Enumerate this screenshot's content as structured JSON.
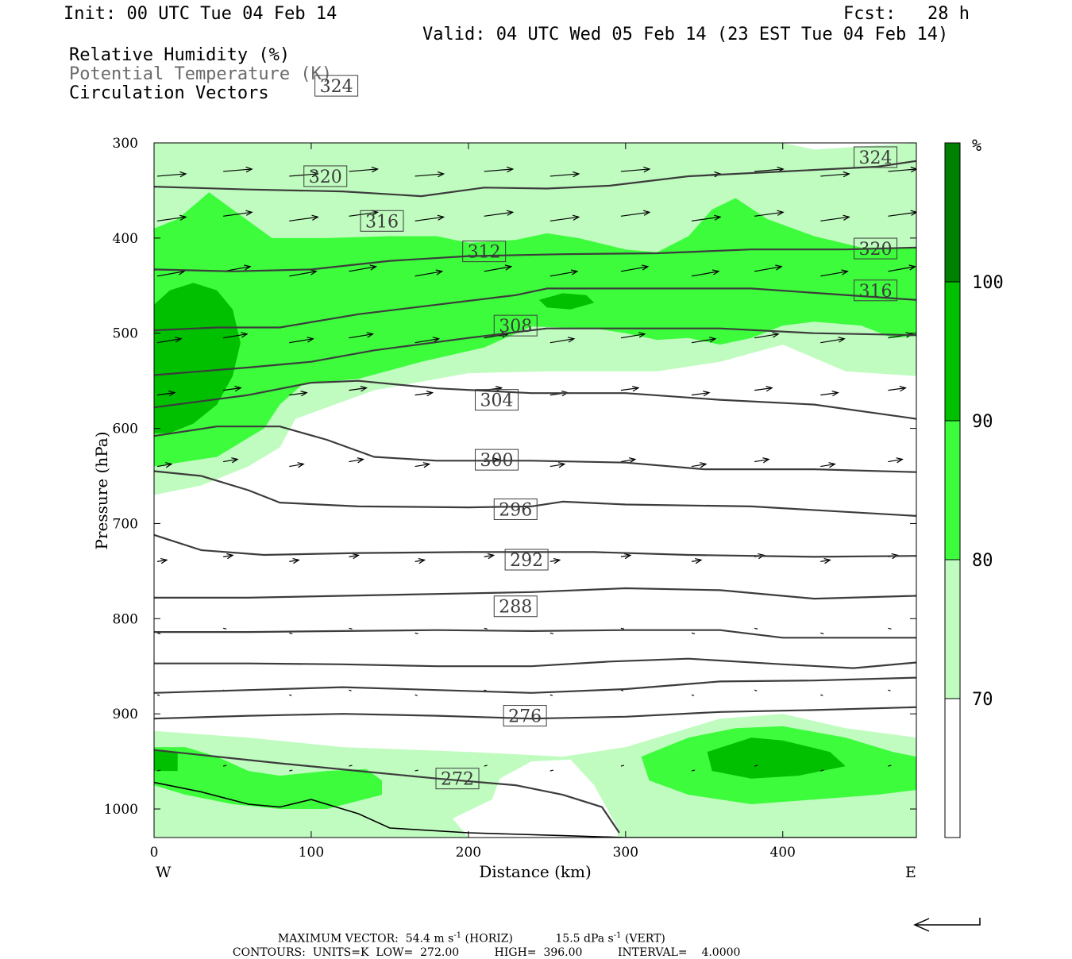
{
  "header": {
    "init": "Init: 00 UTC Tue 04 Feb 14",
    "fcst_label": "Fcst:",
    "fcst_value": "28 h",
    "valid": "Valid: 04 UTC Wed 05 Feb 14 (23 EST Tue 04 Feb 14)",
    "fields": [
      "Relative Humidity (%)",
      "Potential Temperature (K)",
      "Circulation Vectors"
    ]
  },
  "colors": {
    "rh_70_80": "#c0fcc0",
    "rh_80_90": "#3cfc3c",
    "rh_90_100": "#00c000",
    "rh_100": "#008000",
    "contour": "#3c3c3c",
    "field_gray": "#6a6a6a"
  },
  "chart_data": {
    "type": "cross-section",
    "xlabel": "Distance (km)",
    "ylabel": "Pressure (hPa)",
    "x_ticks": [
      0,
      100,
      200,
      300,
      400
    ],
    "x_tick_labels": [
      "0",
      "100",
      "200",
      "300",
      "400"
    ],
    "xlim": [
      0,
      485
    ],
    "y_ticks": [
      300,
      400,
      500,
      600,
      700,
      800,
      900,
      1000
    ],
    "y_tick_labels": [
      "300",
      "400",
      "500",
      "600",
      "700",
      "800",
      "900",
      "1000"
    ],
    "ylim": [
      300,
      1030
    ],
    "end_labels": {
      "west": "W",
      "east": "E"
    },
    "colorbar": {
      "unit": "%",
      "levels": [
        70,
        80,
        90,
        100
      ],
      "level_labels": [
        "70",
        "80",
        "90",
        "100"
      ]
    },
    "theta_contours": [
      {
        "value": 272,
        "label": "272",
        "points": [
          [
            0,
            938
          ],
          [
            40,
            945
          ],
          [
            80,
            952
          ],
          [
            130,
            960
          ],
          [
            180,
            968
          ],
          [
            230,
            975
          ],
          [
            260,
            985
          ],
          [
            285,
            998
          ],
          [
            296,
            1025
          ]
        ]
      },
      {
        "value": 276,
        "label": "276",
        "points": [
          [
            0,
            905
          ],
          [
            60,
            902
          ],
          [
            120,
            900
          ],
          [
            180,
            902
          ],
          [
            240,
            905
          ],
          [
            300,
            903
          ],
          [
            360,
            898
          ],
          [
            420,
            896
          ],
          [
            485,
            893
          ]
        ]
      },
      {
        "value": 280,
        "points": [
          [
            0,
            878
          ],
          [
            60,
            875
          ],
          [
            120,
            872
          ],
          [
            180,
            875
          ],
          [
            240,
            878
          ],
          [
            300,
            874
          ],
          [
            360,
            866
          ],
          [
            420,
            865
          ],
          [
            485,
            862
          ]
        ]
      },
      {
        "value": 284,
        "points": [
          [
            0,
            847
          ],
          [
            60,
            847
          ],
          [
            120,
            848
          ],
          [
            180,
            850
          ],
          [
            240,
            850
          ],
          [
            290,
            845
          ],
          [
            340,
            842
          ],
          [
            400,
            848
          ],
          [
            445,
            852
          ],
          [
            485,
            846
          ]
        ]
      },
      {
        "value": 288,
        "label": "288",
        "points": [
          [
            0,
            814
          ],
          [
            60,
            814
          ],
          [
            120,
            813
          ],
          [
            180,
            812
          ],
          [
            240,
            813
          ],
          [
            300,
            812
          ],
          [
            360,
            812
          ],
          [
            400,
            820
          ],
          [
            485,
            820
          ]
        ]
      },
      {
        "value": 292,
        "label": "292",
        "points": [
          [
            0,
            778
          ],
          [
            60,
            778
          ],
          [
            120,
            776
          ],
          [
            180,
            774
          ],
          [
            240,
            772
          ],
          [
            300,
            768
          ],
          [
            360,
            770
          ],
          [
            420,
            779
          ],
          [
            485,
            776
          ]
        ]
      },
      {
        "value": 296,
        "label": "296",
        "points": [
          [
            0,
            712
          ],
          [
            30,
            728
          ],
          [
            70,
            733
          ],
          [
            130,
            731
          ],
          [
            200,
            730
          ],
          [
            280,
            730
          ],
          [
            340,
            733
          ],
          [
            420,
            735
          ],
          [
            485,
            734
          ]
        ]
      },
      {
        "value": 300,
        "label": "300",
        "points": [
          [
            0,
            645
          ],
          [
            30,
            650
          ],
          [
            60,
            665
          ],
          [
            80,
            678
          ],
          [
            130,
            682
          ],
          [
            200,
            683
          ],
          [
            240,
            682
          ],
          [
            260,
            677
          ],
          [
            300,
            680
          ],
          [
            380,
            682
          ],
          [
            485,
            692
          ]
        ]
      },
      {
        "value": 304,
        "label": "304",
        "points": [
          [
            0,
            608
          ],
          [
            40,
            598
          ],
          [
            80,
            598
          ],
          [
            110,
            612
          ],
          [
            140,
            630
          ],
          [
            180,
            634
          ],
          [
            240,
            634
          ],
          [
            300,
            636
          ],
          [
            350,
            643
          ],
          [
            420,
            643
          ],
          [
            485,
            646
          ]
        ]
      },
      {
        "value": 308,
        "label": "308",
        "points": [
          [
            0,
            578
          ],
          [
            60,
            565
          ],
          [
            100,
            552
          ],
          [
            130,
            550
          ],
          [
            180,
            558
          ],
          [
            240,
            563
          ],
          [
            300,
            563
          ],
          [
            360,
            570
          ],
          [
            420,
            575
          ],
          [
            485,
            590
          ]
        ]
      },
      {
        "value": 312,
        "label": "312",
        "points": [
          [
            0,
            544
          ],
          [
            60,
            536
          ],
          [
            100,
            530
          ],
          [
            140,
            518
          ],
          [
            200,
            505
          ],
          [
            250,
            495
          ],
          [
            300,
            495
          ],
          [
            360,
            495
          ],
          [
            420,
            500
          ],
          [
            485,
            502
          ]
        ]
      },
      {
        "value": 316,
        "label": "316",
        "points": [
          [
            0,
            497
          ],
          [
            40,
            494
          ],
          [
            80,
            494
          ],
          [
            130,
            480
          ],
          [
            180,
            470
          ],
          [
            230,
            460
          ],
          [
            250,
            453
          ],
          [
            300,
            453
          ],
          [
            380,
            453
          ],
          [
            485,
            465
          ]
        ]
      },
      {
        "value": 320,
        "label": "320",
        "points": [
          [
            0,
            433
          ],
          [
            50,
            435
          ],
          [
            100,
            433
          ],
          [
            150,
            424
          ],
          [
            200,
            419
          ],
          [
            260,
            417
          ],
          [
            320,
            416
          ],
          [
            380,
            412
          ],
          [
            440,
            412
          ],
          [
            485,
            410
          ]
        ]
      },
      {
        "value": 324,
        "label": "324",
        "points": [
          [
            0,
            346
          ],
          [
            60,
            349
          ],
          [
            120,
            351
          ],
          [
            170,
            356
          ],
          [
            210,
            347
          ],
          [
            250,
            348
          ],
          [
            290,
            345
          ],
          [
            340,
            335
          ],
          [
            400,
            330
          ],
          [
            460,
            325
          ],
          [
            485,
            319
          ]
        ]
      }
    ],
    "contour_label_positions_km_hpa": {
      "272": [
        193,
        968
      ],
      "276": [
        236,
        902
      ],
      "288": [
        230,
        787
      ],
      "292": [
        237,
        738
      ],
      "296": [
        230,
        685
      ],
      "300": [
        218,
        633
      ],
      "304": [
        218,
        570
      ],
      "308": [
        230,
        492
      ],
      "312": [
        210,
        414
      ],
      "316": [
        145,
        382
      ],
      "320": [
        109,
        335
      ],
      "324": [
        116,
        240
      ]
    },
    "contour_label_right": {
      "324": 315,
      "320": 411,
      "316": 455
    },
    "terrain": [
      [
        0,
        972
      ],
      [
        30,
        982
      ],
      [
        60,
        995
      ],
      [
        80,
        998
      ],
      [
        100,
        990
      ],
      [
        130,
        1005
      ],
      [
        150,
        1020
      ],
      [
        200,
        1025
      ],
      [
        260,
        1028
      ],
      [
        300,
        1030
      ],
      [
        400,
        1030
      ],
      [
        485,
        1030
      ]
    ],
    "max_vector": {
      "horiz_label": "MAXIMUM VECTOR:",
      "horiz_value": "54.4",
      "horiz_units": "m s",
      "horiz_exp": "-1",
      "horiz_tag": "(HORIZ)",
      "vert_value": "15.5",
      "vert_units": "dPa s",
      "vert_exp": "-1",
      "vert_tag": "(VERT)"
    },
    "contours_info": {
      "label": "CONTOURS:",
      "units": "UNITS=K",
      "low": "LOW=",
      "low_value": "272.00",
      "high": "HIGH=",
      "high_value": "396.00",
      "interval": "INTERVAL=",
      "interval_value": "4.0000"
    }
  }
}
